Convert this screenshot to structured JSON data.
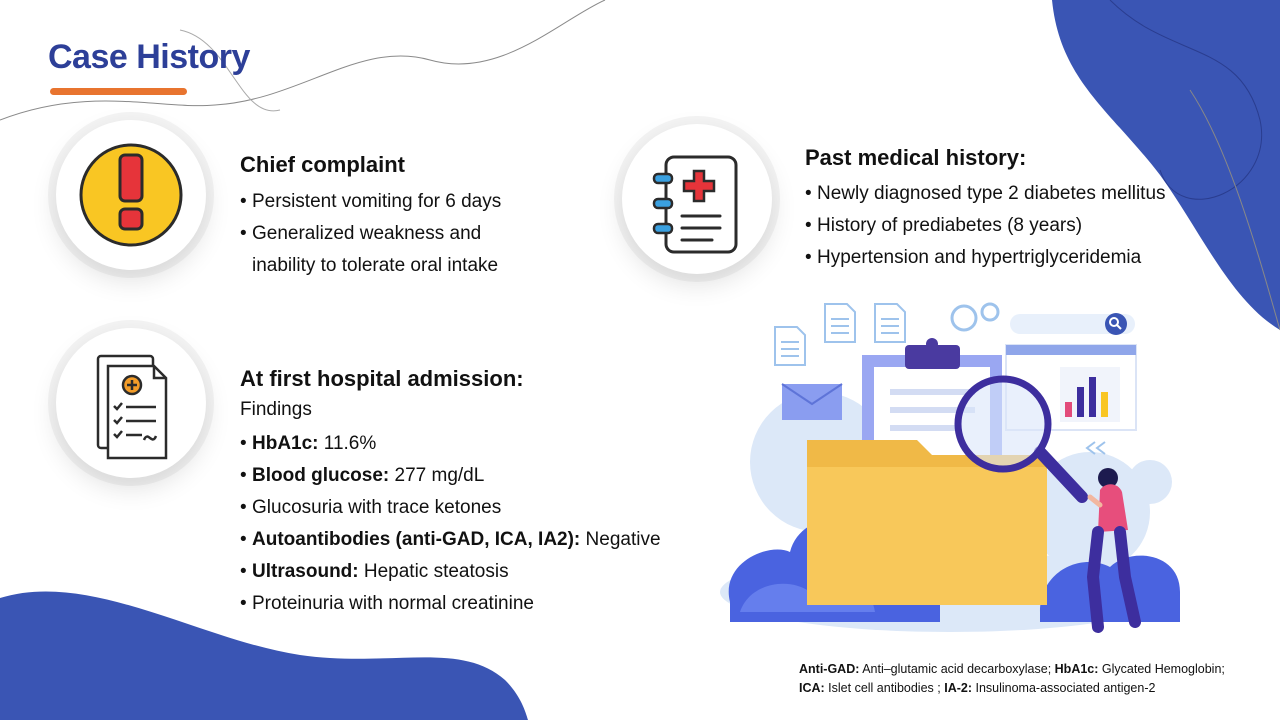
{
  "slide": {
    "title": "Case History"
  },
  "chief_complaint": {
    "title": "Chief complaint",
    "items": [
      "Persistent vomiting for 6 days",
      "Generalized weakness and",
      "inability to tolerate oral intake"
    ]
  },
  "past_history": {
    "title": "Past medical history:",
    "items": [
      "Newly diagnosed type 2 diabetes mellitus",
      "History of prediabetes (8 years)",
      "Hypertension and hypertriglyceridemia"
    ]
  },
  "admission": {
    "title": "At first hospital admission:",
    "subtitle": "Findings",
    "items": [
      {
        "label": "HbA1c:",
        "value": " 11.6%"
      },
      {
        "label": "Blood glucose:",
        "value": " 277 mg/dL"
      },
      {
        "label": "",
        "value": "Glucosuria with trace ketones"
      },
      {
        "label": "Autoantibodies (anti-GAD, ICA, IA2):",
        "value": " Negative"
      },
      {
        "label": "Ultrasound:",
        "value": " Hepatic steatosis"
      },
      {
        "label": "",
        "value": "Proteinuria with normal creatinine"
      }
    ]
  },
  "footnote": {
    "parts": [
      {
        "label": "Anti-GAD:",
        "text": " Anti–glutamic acid decarboxylase; "
      },
      {
        "label": "HbA1c:",
        "text": " Glycated Hemoglobin;"
      },
      {
        "label": "ICA:",
        "text": " Islet cell antibodies ; "
      },
      {
        "label": "IA-2:",
        "text": " Insulinoma-associated antigen-2"
      }
    ]
  },
  "icons": {
    "chief": "exclamation-warning-icon",
    "past": "medical-record-icon",
    "admission": "medical-report-checklist-icon",
    "illustration": "file-search-illustration"
  },
  "colors": {
    "brand_blue": "#3a55b4",
    "title_blue": "#2d3f98",
    "accent_orange": "#e8742f",
    "warning_yellow": "#f9c623",
    "warning_red": "#e6343a",
    "folder_yellow": "#f8c85a",
    "chart_purple": "#3d2e9e"
  }
}
